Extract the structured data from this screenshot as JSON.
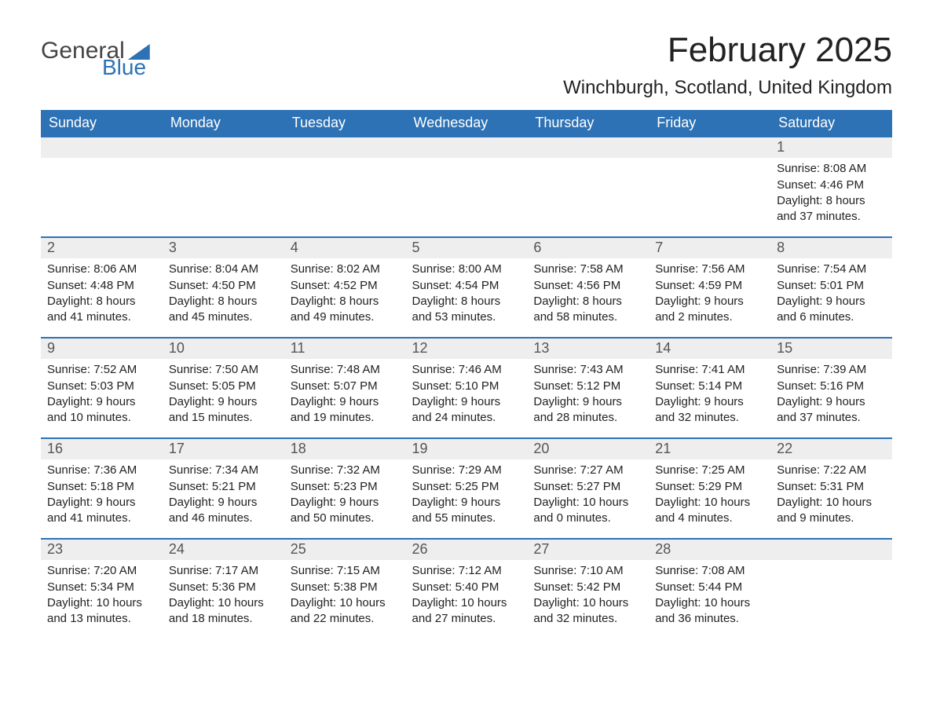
{
  "brand": {
    "line1": "General",
    "line2": "Blue"
  },
  "title": "February 2025",
  "location": "Winchburgh, Scotland, United Kingdom",
  "colors": {
    "accent": "#2d72b5",
    "header_text": "#ffffff",
    "daynum_bg": "#eeeeee",
    "body_text": "#222222",
    "page_bg": "#ffffff"
  },
  "layout": {
    "columns": 7,
    "rows": 5,
    "first_day_column_index": 6,
    "days_in_month": 28
  },
  "weekdays": [
    "Sunday",
    "Monday",
    "Tuesday",
    "Wednesday",
    "Thursday",
    "Friday",
    "Saturday"
  ],
  "days": [
    {
      "n": 1,
      "sunrise": "8:08 AM",
      "sunset": "4:46 PM",
      "daylight": "8 hours and 37 minutes."
    },
    {
      "n": 2,
      "sunrise": "8:06 AM",
      "sunset": "4:48 PM",
      "daylight": "8 hours and 41 minutes."
    },
    {
      "n": 3,
      "sunrise": "8:04 AM",
      "sunset": "4:50 PM",
      "daylight": "8 hours and 45 minutes."
    },
    {
      "n": 4,
      "sunrise": "8:02 AM",
      "sunset": "4:52 PM",
      "daylight": "8 hours and 49 minutes."
    },
    {
      "n": 5,
      "sunrise": "8:00 AM",
      "sunset": "4:54 PM",
      "daylight": "8 hours and 53 minutes."
    },
    {
      "n": 6,
      "sunrise": "7:58 AM",
      "sunset": "4:56 PM",
      "daylight": "8 hours and 58 minutes."
    },
    {
      "n": 7,
      "sunrise": "7:56 AM",
      "sunset": "4:59 PM",
      "daylight": "9 hours and 2 minutes."
    },
    {
      "n": 8,
      "sunrise": "7:54 AM",
      "sunset": "5:01 PM",
      "daylight": "9 hours and 6 minutes."
    },
    {
      "n": 9,
      "sunrise": "7:52 AM",
      "sunset": "5:03 PM",
      "daylight": "9 hours and 10 minutes."
    },
    {
      "n": 10,
      "sunrise": "7:50 AM",
      "sunset": "5:05 PM",
      "daylight": "9 hours and 15 minutes."
    },
    {
      "n": 11,
      "sunrise": "7:48 AM",
      "sunset": "5:07 PM",
      "daylight": "9 hours and 19 minutes."
    },
    {
      "n": 12,
      "sunrise": "7:46 AM",
      "sunset": "5:10 PM",
      "daylight": "9 hours and 24 minutes."
    },
    {
      "n": 13,
      "sunrise": "7:43 AM",
      "sunset": "5:12 PM",
      "daylight": "9 hours and 28 minutes."
    },
    {
      "n": 14,
      "sunrise": "7:41 AM",
      "sunset": "5:14 PM",
      "daylight": "9 hours and 32 minutes."
    },
    {
      "n": 15,
      "sunrise": "7:39 AM",
      "sunset": "5:16 PM",
      "daylight": "9 hours and 37 minutes."
    },
    {
      "n": 16,
      "sunrise": "7:36 AM",
      "sunset": "5:18 PM",
      "daylight": "9 hours and 41 minutes."
    },
    {
      "n": 17,
      "sunrise": "7:34 AM",
      "sunset": "5:21 PM",
      "daylight": "9 hours and 46 minutes."
    },
    {
      "n": 18,
      "sunrise": "7:32 AM",
      "sunset": "5:23 PM",
      "daylight": "9 hours and 50 minutes."
    },
    {
      "n": 19,
      "sunrise": "7:29 AM",
      "sunset": "5:25 PM",
      "daylight": "9 hours and 55 minutes."
    },
    {
      "n": 20,
      "sunrise": "7:27 AM",
      "sunset": "5:27 PM",
      "daylight": "10 hours and 0 minutes."
    },
    {
      "n": 21,
      "sunrise": "7:25 AM",
      "sunset": "5:29 PM",
      "daylight": "10 hours and 4 minutes."
    },
    {
      "n": 22,
      "sunrise": "7:22 AM",
      "sunset": "5:31 PM",
      "daylight": "10 hours and 9 minutes."
    },
    {
      "n": 23,
      "sunrise": "7:20 AM",
      "sunset": "5:34 PM",
      "daylight": "10 hours and 13 minutes."
    },
    {
      "n": 24,
      "sunrise": "7:17 AM",
      "sunset": "5:36 PM",
      "daylight": "10 hours and 18 minutes."
    },
    {
      "n": 25,
      "sunrise": "7:15 AM",
      "sunset": "5:38 PM",
      "daylight": "10 hours and 22 minutes."
    },
    {
      "n": 26,
      "sunrise": "7:12 AM",
      "sunset": "5:40 PM",
      "daylight": "10 hours and 27 minutes."
    },
    {
      "n": 27,
      "sunrise": "7:10 AM",
      "sunset": "5:42 PM",
      "daylight": "10 hours and 32 minutes."
    },
    {
      "n": 28,
      "sunrise": "7:08 AM",
      "sunset": "5:44 PM",
      "daylight": "10 hours and 36 minutes."
    }
  ],
  "labels": {
    "sunrise": "Sunrise:",
    "sunset": "Sunset:",
    "daylight": "Daylight:"
  }
}
